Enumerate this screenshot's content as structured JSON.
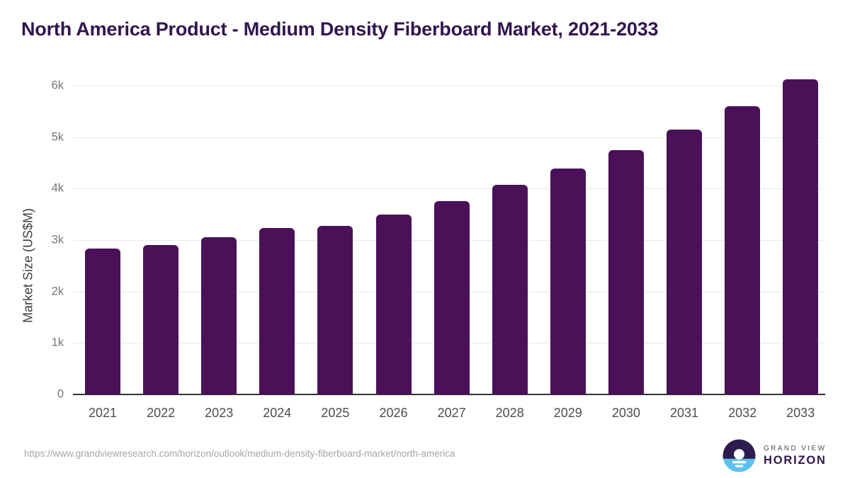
{
  "title": "North America Product - Medium Density Fiberboard Market, 2021-2033",
  "chart_data": {
    "type": "bar",
    "title": "North America Product - Medium Density Fiberboard Market, 2021-2033",
    "categories": [
      "2021",
      "2022",
      "2023",
      "2024",
      "2025",
      "2026",
      "2027",
      "2028",
      "2029",
      "2030",
      "2031",
      "2032",
      "2033"
    ],
    "values": [
      2830,
      2910,
      3060,
      3230,
      3280,
      3500,
      3760,
      4070,
      4390,
      4750,
      5150,
      5600,
      6130
    ],
    "series_name": "Market Size (US$M)",
    "xlabel": "",
    "ylabel": "Market Size (US$M)",
    "ylim": [
      0,
      6000
    ],
    "yticks": [
      {
        "value": 0,
        "label": "0"
      },
      {
        "value": 1000,
        "label": "1k"
      },
      {
        "value": 2000,
        "label": "2k"
      },
      {
        "value": 3000,
        "label": "3k"
      },
      {
        "value": 4000,
        "label": "4k"
      },
      {
        "value": 5000,
        "label": "5k"
      },
      {
        "value": 6000,
        "label": "6k"
      }
    ],
    "grid": true,
    "legend": false,
    "bar_color": "#4a1158"
  },
  "footer": {
    "source_url": "https://www.grandviewresearch.com/horizon/outlook/medium-density-fiberboard-market/north-america",
    "logo": {
      "line1": "GRAND VIEW",
      "line2": "HORIZON",
      "mark": "sun-over-water-circle"
    }
  },
  "colors": {
    "bar": "#4a1158",
    "title_text": "#32154e",
    "gridline": "#e8e8e8",
    "axis_line": "#333333",
    "tick_label": "#767676",
    "x_label": "#4d4d4d",
    "axis_title": "#3d3d3d",
    "url_text": "#a6a6a6",
    "logo_purple": "#2e1c4e",
    "logo_blue": "#5bc2ee",
    "background": "#ffffff"
  }
}
